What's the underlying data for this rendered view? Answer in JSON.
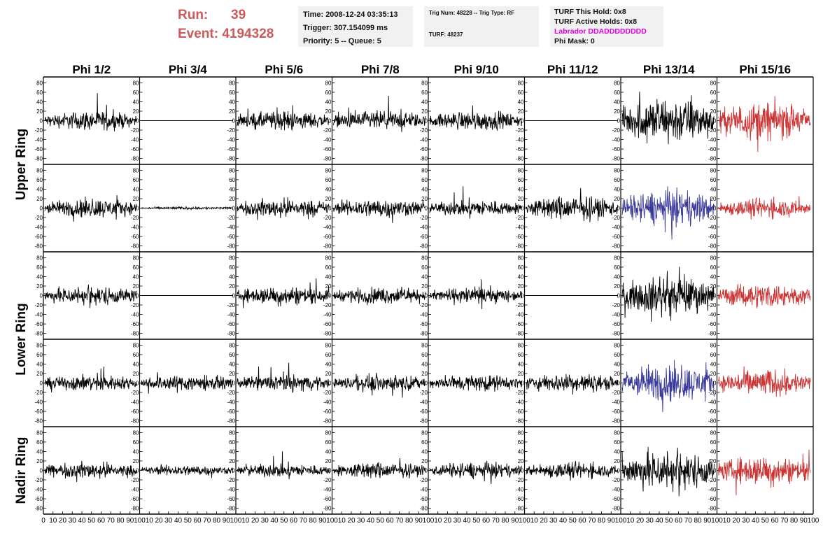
{
  "header": {
    "run_label": "Run:",
    "run_value": "39",
    "event_label": "Event:",
    "event_value": "4194328"
  },
  "info": {
    "time": "Time: 2008-12-24 03:35:13",
    "trigger": "Trigger: 307.154099 ms",
    "priority": "Priority: 5 -- Queue: 5",
    "trig_num": "Trig Num: 48228 -- Trig Type: RF",
    "turf": "TURF: 48237",
    "turf_hold": "TURF This Hold: 0x8",
    "turf_active": "TURF Active Holds: 0x8",
    "labrador": "Labrador DDADDDDDDDD",
    "phi_mask": "Phi Mask: 0"
  },
  "colors": {
    "trace_default": "#000000",
    "trace_red": "#cc3333",
    "trace_blue": "#3a3a9c",
    "run_text": "#cc5a5a",
    "labrador_text": "#e000e0"
  },
  "chart_data": {
    "type": "line",
    "columns": [
      "Phi 1/2",
      "Phi 3/4",
      "Phi 5/6",
      "Phi 7/8",
      "Phi 9/10",
      "Phi 11/12",
      "Phi 13/14",
      "Phi 15/16"
    ],
    "rows": [
      "Upper Ring",
      "Upper Ring",
      "Lower Ring",
      "Lower Ring",
      "Nadir Ring"
    ],
    "row_groups": [
      {
        "label": "Upper Ring",
        "rows": [
          0,
          1
        ]
      },
      {
        "label": "Lower Ring",
        "rows": [
          2,
          3
        ]
      },
      {
        "label": "Nadir Ring",
        "rows": [
          4
        ]
      }
    ],
    "ylim": [
      -85,
      85
    ],
    "yticks": [
      -80,
      -60,
      -40,
      -20,
      0,
      20,
      40,
      60,
      80
    ],
    "xlim": [
      0,
      100
    ],
    "xticks": [
      0,
      10,
      20,
      30,
      40,
      50,
      60,
      70,
      80,
      90,
      100
    ],
    "samples_per_trace": 260,
    "amplitude": [
      [
        14,
        0,
        14,
        14,
        14,
        0,
        34,
        28
      ],
      [
        14,
        2,
        14,
        14,
        12,
        18,
        26,
        14
      ],
      [
        14,
        0,
        14,
        12,
        12,
        0,
        28,
        18
      ],
      [
        12,
        12,
        12,
        12,
        12,
        14,
        28,
        20
      ],
      [
        12,
        8,
        10,
        12,
        12,
        12,
        30,
        22
      ]
    ],
    "color": [
      [
        "default",
        "default",
        "default",
        "default",
        "default",
        "default",
        "default",
        "red"
      ],
      [
        "default",
        "default",
        "default",
        "default",
        "default",
        "default",
        "blue",
        "red"
      ],
      [
        "default",
        "default",
        "default",
        "default",
        "default",
        "default",
        "default",
        "red"
      ],
      [
        "default",
        "default",
        "default",
        "default",
        "default",
        "default",
        "blue",
        "red"
      ],
      [
        "default",
        "default",
        "default",
        "default",
        "default",
        "default",
        "default",
        "red"
      ]
    ]
  }
}
